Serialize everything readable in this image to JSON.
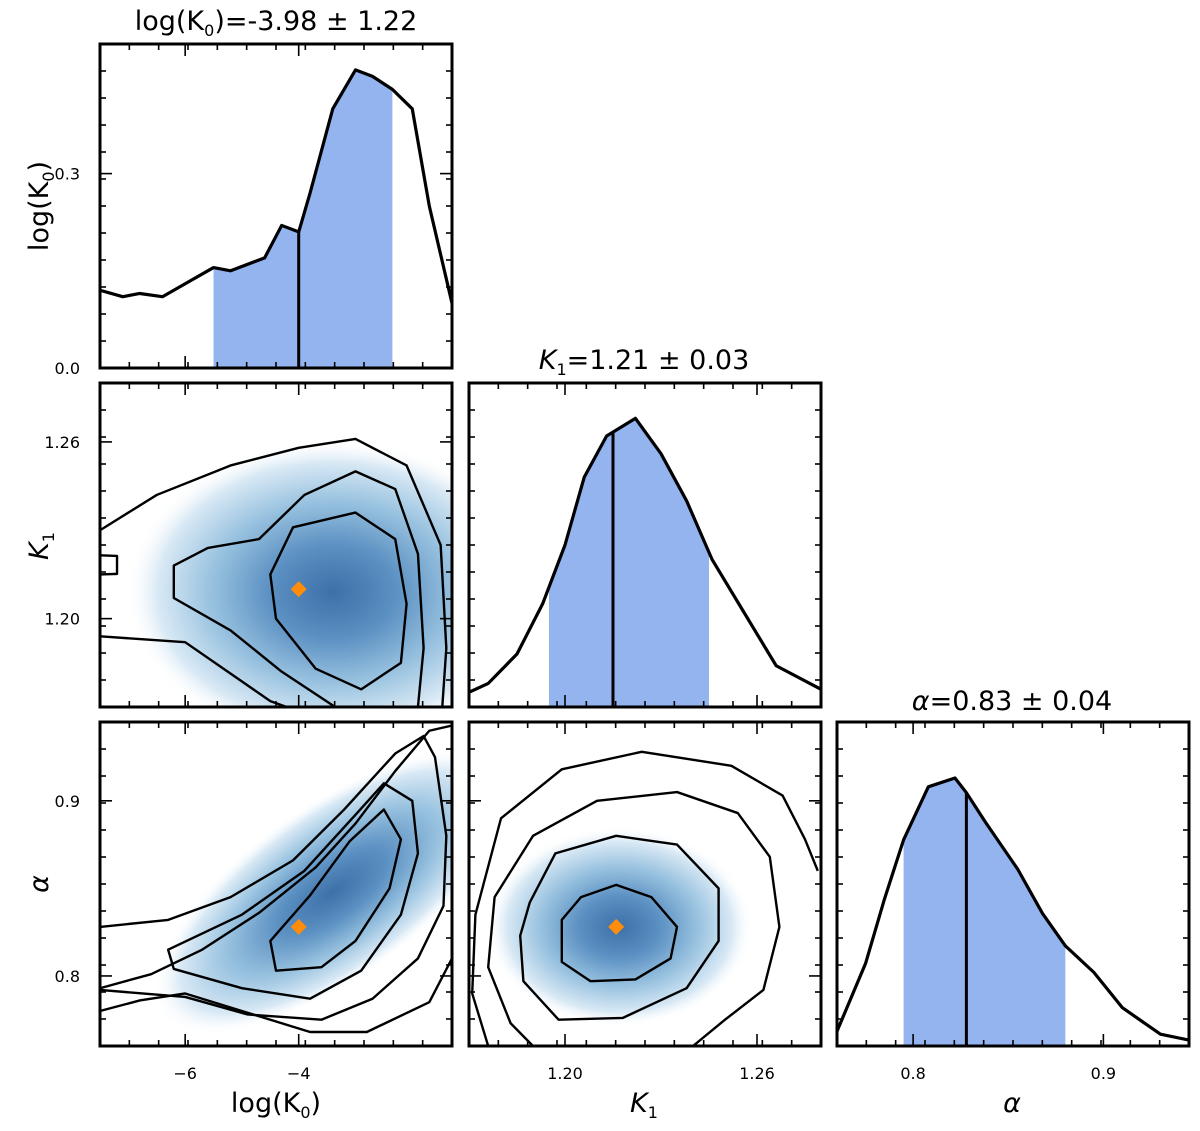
{
  "chart_data": {
    "type": "corner",
    "parameters": [
      {
        "key": "logK0",
        "label": "log(K",
        "sub": "0",
        "suffix": ")",
        "title_value": "=-3.98 ± 1.22",
        "range": [
          -7.5,
          -1.3
        ],
        "ticks": [
          -6,
          -4
        ],
        "tick_labels": [
          "−6",
          "−4"
        ]
      },
      {
        "key": "K1",
        "label": "K",
        "sub": "1",
        "suffix": "",
        "title_value": "=1.21 ± 0.03",
        "range": [
          1.17,
          1.28
        ],
        "ticks": [
          1.2,
          1.26
        ],
        "tick_labels": [
          "1.20",
          "1.26"
        ]
      },
      {
        "key": "alpha",
        "label": "α",
        "sub": "",
        "suffix": "",
        "title_value": "=0.83 ± 0.04",
        "range": [
          0.76,
          0.945
        ],
        "ticks": [
          0.8,
          0.9
        ],
        "tick_labels": [
          "0.8",
          "0.9"
        ]
      }
    ],
    "marginals": [
      {
        "param": "logK0",
        "median": -4.0,
        "ci": [
          -5.5,
          -2.35
        ],
        "y_ticks": [
          0.0,
          0.3
        ],
        "y_tick_labels": [
          "0.0",
          "0.3"
        ],
        "ylim": [
          0,
          0.5
        ],
        "x": [
          -7.5,
          -7.1,
          -6.8,
          -6.4,
          -6.0,
          -5.5,
          -5.2,
          -4.6,
          -4.3,
          -4.0,
          -3.8,
          -3.4,
          -3.0,
          -2.7,
          -2.35,
          -2.0,
          -1.7,
          -1.3
        ],
        "y": [
          0.12,
          0.11,
          0.115,
          0.11,
          0.13,
          0.155,
          0.15,
          0.17,
          0.22,
          0.21,
          0.27,
          0.4,
          0.46,
          0.45,
          0.43,
          0.4,
          0.25,
          0.1
        ]
      },
      {
        "param": "K1",
        "median": 1.215,
        "ci": [
          1.195,
          1.245
        ],
        "ylim": [
          0,
          1.1
        ],
        "x": [
          1.17,
          1.176,
          1.185,
          1.193,
          1.2,
          1.206,
          1.213,
          1.222,
          1.23,
          1.238,
          1.246,
          1.256,
          1.266,
          1.28
        ],
        "y": [
          0.05,
          0.08,
          0.18,
          0.35,
          0.55,
          0.78,
          0.92,
          0.98,
          0.86,
          0.7,
          0.5,
          0.32,
          0.14,
          0.06
        ]
      },
      {
        "param": "alpha",
        "median": 0.828,
        "ci": [
          0.795,
          0.88
        ],
        "ylim": [
          0,
          1.1
        ],
        "x": [
          0.76,
          0.775,
          0.785,
          0.795,
          0.808,
          0.822,
          0.828,
          0.838,
          0.855,
          0.868,
          0.88,
          0.895,
          0.91,
          0.93,
          0.945
        ],
        "y": [
          0.05,
          0.28,
          0.5,
          0.7,
          0.88,
          0.91,
          0.86,
          0.76,
          0.6,
          0.45,
          0.34,
          0.25,
          0.13,
          0.04,
          0.02
        ]
      }
    ],
    "joints": [
      {
        "x": "logK0",
        "y": "K1",
        "best_fit": [
          -4.0,
          1.21
        ],
        "density": {
          "center": [
            -3.4,
            1.209
          ],
          "sigma": [
            1.4,
            0.02
          ]
        },
        "contours": [
          {
            "closed": true,
            "points": [
              [
                -4.1,
                1.231
              ],
              [
                -3.0,
                1.236
              ],
              [
                -2.3,
                1.227
              ],
              [
                -2.1,
                1.205
              ],
              [
                -2.2,
                1.185
              ],
              [
                -2.9,
                1.176
              ],
              [
                -3.7,
                1.183
              ],
              [
                -4.4,
                1.2
              ],
              [
                -4.5,
                1.215
              ]
            ]
          },
          {
            "closed": true,
            "points": [
              [
                -4.7,
                1.227
              ],
              [
                -3.9,
                1.242
              ],
              [
                -3.0,
                1.25
              ],
              [
                -2.3,
                1.244
              ],
              [
                -1.9,
                1.222
              ],
              [
                -1.8,
                1.19
              ],
              [
                -1.9,
                1.17
              ],
              [
                -2.4,
                1.162
              ],
              [
                -3.2,
                1.168
              ],
              [
                -4.3,
                1.182
              ],
              [
                -5.2,
                1.196
              ],
              [
                -6.2,
                1.207
              ],
              [
                -6.2,
                1.218
              ],
              [
                -5.6,
                1.224
              ]
            ]
          },
          {
            "closed": false,
            "points": [
              [
                -7.5,
                1.23
              ],
              [
                -6.5,
                1.242
              ],
              [
                -5.2,
                1.252
              ],
              [
                -4.0,
                1.258
              ],
              [
                -3.0,
                1.261
              ],
              [
                -2.1,
                1.252
              ],
              [
                -1.5,
                1.225
              ],
              [
                -1.4,
                1.19
              ],
              [
                -1.5,
                1.162
              ],
              [
                -2.2,
                1.158
              ],
              [
                -3.2,
                1.163
              ],
              [
                -4.5,
                1.172
              ],
              [
                -6.0,
                1.192
              ],
              [
                -7.5,
                1.194
              ]
            ]
          },
          {
            "closed": false,
            "points": [
              [
                -7.5,
                1.2215
              ],
              [
                -7.2,
                1.2213
              ],
              [
                -7.2,
                1.2152
              ],
              [
                -7.5,
                1.215
              ]
            ]
          }
        ]
      },
      {
        "x": "logK0",
        "y": "alpha",
        "best_fit": [
          -4.0,
          0.828
        ],
        "density": {
          "center": [
            -3.4,
            0.848
          ],
          "sigma": [
            1.3,
            0.035
          ],
          "rho": 0.8
        },
        "contours": [
          {
            "closed": true,
            "points": [
              [
                -4.5,
                0.82
              ],
              [
                -3.8,
                0.846
              ],
              [
                -3.1,
                0.877
              ],
              [
                -2.5,
                0.895
              ],
              [
                -2.2,
                0.878
              ],
              [
                -2.4,
                0.85
              ],
              [
                -3.0,
                0.82
              ],
              [
                -3.6,
                0.805
              ],
              [
                -4.4,
                0.803
              ]
            ]
          },
          {
            "closed": true,
            "points": [
              [
                -6.3,
                0.815
              ],
              [
                -5.0,
                0.835
              ],
              [
                -3.9,
                0.86
              ],
              [
                -3.0,
                0.892
              ],
              [
                -2.5,
                0.91
              ],
              [
                -2.0,
                0.9
              ],
              [
                -1.9,
                0.87
              ],
              [
                -2.2,
                0.835
              ],
              [
                -2.9,
                0.803
              ],
              [
                -3.8,
                0.787
              ],
              [
                -5.0,
                0.793
              ],
              [
                -6.2,
                0.804
              ]
            ]
          },
          {
            "closed": false,
            "points": [
              [
                -7.5,
                0.828
              ],
              [
                -6.3,
                0.832
              ],
              [
                -5.2,
                0.845
              ],
              [
                -4.1,
                0.866
              ],
              [
                -3.2,
                0.895
              ],
              [
                -2.3,
                0.927
              ],
              [
                -1.8,
                0.937
              ],
              [
                -1.6,
                0.925
              ],
              [
                -1.4,
                0.88
              ],
              [
                -1.45,
                0.84
              ],
              [
                -1.9,
                0.81
              ],
              [
                -2.7,
                0.787
              ],
              [
                -3.6,
                0.775
              ],
              [
                -4.9,
                0.778
              ],
              [
                -6.0,
                0.788
              ],
              [
                -7.5,
                0.792
              ]
            ]
          },
          {
            "closed": false,
            "points": [
              [
                -7.5,
                0.793
              ],
              [
                -6.6,
                0.801
              ],
              [
                -5.7,
                0.815
              ],
              [
                -4.7,
                0.836
              ],
              [
                -3.7,
                0.862
              ],
              [
                -3.0,
                0.887
              ],
              [
                -2.3,
                0.917
              ],
              [
                -1.7,
                0.94
              ],
              [
                -1.3,
                0.943
              ]
            ]
          },
          {
            "closed": false,
            "points": [
              [
                -7.5,
                0.78
              ],
              [
                -6.8,
                0.786
              ],
              [
                -6.0,
                0.79
              ],
              [
                -5.0,
                0.78
              ],
              [
                -3.8,
                0.768
              ],
              [
                -2.8,
                0.768
              ],
              [
                -1.7,
                0.785
              ],
              [
                -1.3,
                0.81
              ]
            ]
          }
        ]
      },
      {
        "x": "K1",
        "y": "alpha",
        "best_fit": [
          1.216,
          0.828
        ],
        "density": {
          "center": [
            1.217,
            0.828
          ],
          "sigma": [
            0.016,
            0.022
          ]
        },
        "contours": [
          {
            "closed": true,
            "points": [
              [
                1.199,
                0.832
              ],
              [
                1.205,
                0.845
              ],
              [
                1.216,
                0.852
              ],
              [
                1.227,
                0.845
              ],
              [
                1.235,
                0.828
              ],
              [
                1.233,
                0.81
              ],
              [
                1.222,
                0.798
              ],
              [
                1.208,
                0.797
              ],
              [
                1.199,
                0.808
              ]
            ]
          },
          {
            "closed": true,
            "points": [
              [
                1.189,
                0.842
              ],
              [
                1.197,
                0.87
              ],
              [
                1.216,
                0.88
              ],
              [
                1.235,
                0.875
              ],
              [
                1.248,
                0.85
              ],
              [
                1.248,
                0.82
              ],
              [
                1.238,
                0.793
              ],
              [
                1.218,
                0.776
              ],
              [
                1.198,
                0.775
              ],
              [
                1.187,
                0.797
              ],
              [
                1.186,
                0.823
              ]
            ]
          },
          {
            "closed": false,
            "points": [
              [
                1.19,
                0.76
              ],
              [
                1.183,
                0.773
              ],
              [
                1.176,
                0.805
              ],
              [
                1.178,
                0.845
              ],
              [
                1.19,
                0.88
              ],
              [
                1.21,
                0.9
              ],
              [
                1.235,
                0.905
              ],
              [
                1.254,
                0.893
              ],
              [
                1.264,
                0.868
              ],
              [
                1.267,
                0.828
              ],
              [
                1.262,
                0.792
              ],
              [
                1.25,
                0.775
              ],
              [
                1.24,
                0.76
              ]
            ]
          },
          {
            "closed": false,
            "points": [
              [
                1.176,
                0.76
              ],
              [
                1.171,
                0.79
              ],
              [
                1.172,
                0.835
              ],
              [
                1.18,
                0.89
              ],
              [
                1.199,
                0.918
              ],
              [
                1.224,
                0.928
              ],
              [
                1.252,
                0.92
              ],
              [
                1.268,
                0.903
              ],
              [
                1.275,
                0.878
              ],
              [
                1.279,
                0.86
              ]
            ]
          }
        ]
      }
    ]
  }
}
